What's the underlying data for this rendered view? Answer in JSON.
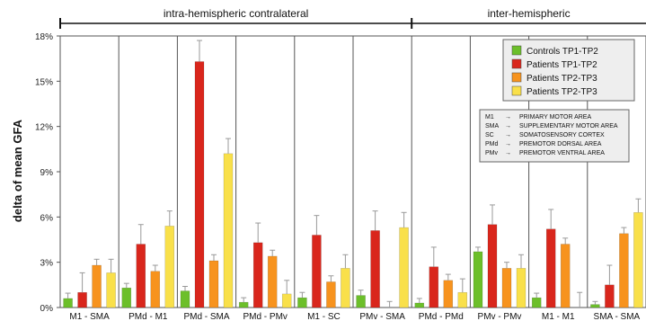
{
  "chart_data": {
    "type": "bar",
    "ylabel": "delta of mean GFA",
    "yticks": [
      "0%",
      "3%",
      "6%",
      "9%",
      "12%",
      "15%",
      "18%"
    ],
    "ylim": [
      0,
      18
    ],
    "grid": "vertical separators",
    "groups": [
      {
        "label": "intra-hemispheric contralateral",
        "from": 0,
        "to": 5
      },
      {
        "label": "inter-hemispheric",
        "from": 6,
        "to": 9
      }
    ],
    "categories": [
      "M1 - SMA",
      "PMd - M1",
      "PMd - SMA",
      "PMd - PMv",
      "M1 - SC",
      "PMv - SMA",
      "PMd - PMd",
      "PMv - PMv",
      "M1 - M1",
      "SMA - SMA"
    ],
    "series": [
      {
        "name": "Controls TP1-TP2",
        "color": "#6cbf2a",
        "values": [
          0.6,
          1.3,
          1.1,
          0.35,
          0.65,
          0.8,
          0.3,
          3.7,
          0.65,
          0.2
        ],
        "errors": [
          0.35,
          0.3,
          0.3,
          0.3,
          0.35,
          0.35,
          0.3,
          0.3,
          0.3,
          0.2
        ]
      },
      {
        "name": "Patients TP1-TP2",
        "color": "#d9261c",
        "values": [
          1.0,
          4.2,
          16.3,
          4.3,
          4.8,
          5.1,
          2.7,
          5.5,
          5.2,
          1.5
        ],
        "errors": [
          1.3,
          1.3,
          1.4,
          1.3,
          1.3,
          1.3,
          1.3,
          1.3,
          1.3,
          1.3
        ]
      },
      {
        "name": "Patients TP2-TP3",
        "color": "#f7931e",
        "values": [
          2.8,
          2.4,
          3.1,
          3.4,
          1.7,
          0.0,
          1.8,
          2.6,
          4.2,
          4.9
        ],
        "errors": [
          0.4,
          0.4,
          0.4,
          0.4,
          0.4,
          0.4,
          0.4,
          0.4,
          0.4,
          0.4
        ]
      },
      {
        "name": "Patients TP2-TP3",
        "color": "#f9e04a",
        "values": [
          2.3,
          5.4,
          10.2,
          0.9,
          2.6,
          5.3,
          1.0,
          2.6,
          0.0,
          6.3
        ],
        "errors": [
          0.9,
          1.0,
          1.0,
          0.9,
          0.9,
          1.0,
          0.9,
          0.9,
          1.0,
          0.9
        ]
      }
    ],
    "legend_labels": [
      "Controls TP1-TP2",
      "Patients TP1-TP2",
      "Patients TP2-TP3",
      "Patients TP2-TP3"
    ],
    "abbreviations": [
      {
        "abbr": "M1",
        "arrow": "→",
        "meaning": "PRIMARY MOTOR AREA"
      },
      {
        "abbr": "SMA",
        "arrow": "→",
        "meaning": "SUPPLEMENTARY MOTOR AREA"
      },
      {
        "abbr": "SC",
        "arrow": "→",
        "meaning": "SOMATOSENSORY CORTEX"
      },
      {
        "abbr": "PMd",
        "arrow": "→",
        "meaning": "PREMOTOR DORSAL AREA"
      },
      {
        "abbr": "PMv",
        "arrow": "→",
        "meaning": "PREMOTOR VENTRAL AREA"
      }
    ],
    "legend_position": "top-right"
  }
}
